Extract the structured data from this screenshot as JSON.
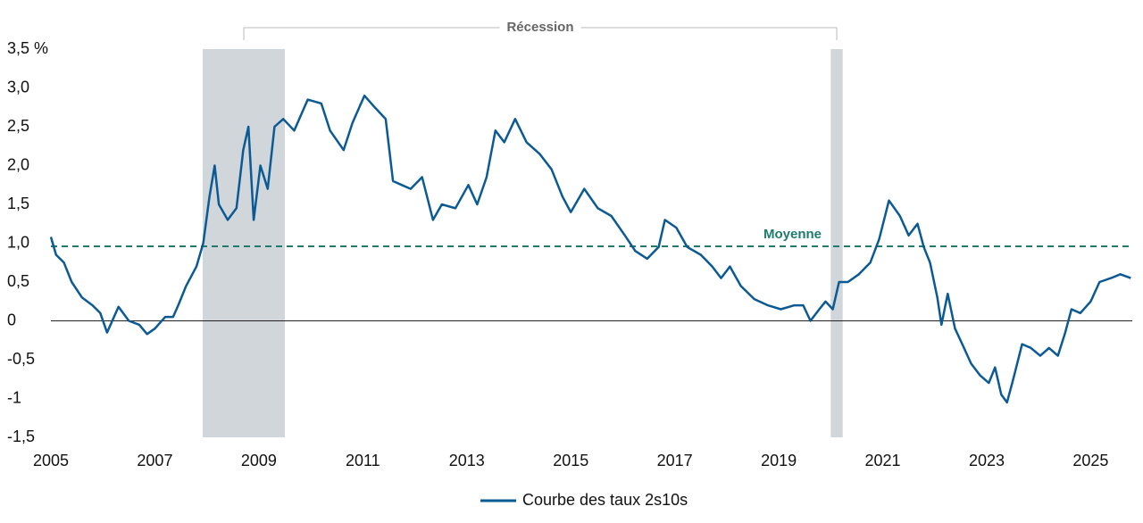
{
  "chart_data": {
    "type": "line",
    "x": [
      2005.0,
      2005.1,
      2005.25,
      2005.4,
      2005.6,
      2005.8,
      2005.95,
      2006.08,
      2006.3,
      2006.5,
      2006.7,
      2006.85,
      2007.0,
      2007.2,
      2007.35,
      2007.45,
      2007.6,
      2007.8,
      2007.93,
      2008.05,
      2008.15,
      2008.23,
      2008.4,
      2008.57,
      2008.7,
      2008.8,
      2008.9,
      2009.03,
      2009.17,
      2009.3,
      2009.47,
      2009.68,
      2009.94,
      2010.2,
      2010.37,
      2010.63,
      2010.8,
      2011.03,
      2011.23,
      2011.44,
      2011.58,
      2011.75,
      2011.92,
      2012.14,
      2012.35,
      2012.52,
      2012.78,
      2013.03,
      2013.2,
      2013.38,
      2013.55,
      2013.72,
      2013.93,
      2014.15,
      2014.4,
      2014.63,
      2014.84,
      2015.0,
      2015.26,
      2015.52,
      2015.78,
      2016.04,
      2016.24,
      2016.47,
      2016.69,
      2016.81,
      2017.03,
      2017.24,
      2017.5,
      2017.72,
      2017.89,
      2018.06,
      2018.27,
      2018.53,
      2018.79,
      2019.04,
      2019.3,
      2019.47,
      2019.61,
      2019.78,
      2019.9,
      2020.04,
      2020.16,
      2020.33,
      2020.54,
      2020.76,
      2020.93,
      2021.12,
      2021.33,
      2021.5,
      2021.67,
      2021.79,
      2021.91,
      2022.05,
      2022.13,
      2022.25,
      2022.39,
      2022.53,
      2022.7,
      2022.87,
      2023.04,
      2023.16,
      2023.28,
      2023.39,
      2023.51,
      2023.68,
      2023.85,
      2024.03,
      2024.2,
      2024.37,
      2024.51,
      2024.63,
      2024.8,
      2025.0,
      2025.17,
      2025.39,
      2025.57,
      2025.77
    ],
    "series": [
      {
        "name": "Courbe des taux 2s10s",
        "color": "#0b5a94",
        "values": [
          1.08,
          0.85,
          0.75,
          0.5,
          0.3,
          0.2,
          0.1,
          -0.15,
          0.18,
          0.0,
          -0.05,
          -0.17,
          -0.1,
          0.05,
          0.05,
          0.2,
          0.45,
          0.7,
          1.0,
          1.6,
          2.0,
          1.5,
          1.3,
          1.45,
          2.2,
          2.5,
          1.3,
          2.0,
          1.7,
          2.5,
          2.6,
          2.45,
          2.85,
          2.8,
          2.45,
          2.2,
          2.55,
          2.9,
          2.75,
          2.6,
          1.8,
          1.75,
          1.7,
          1.85,
          1.3,
          1.5,
          1.45,
          1.75,
          1.5,
          1.85,
          2.45,
          2.3,
          2.6,
          2.3,
          2.15,
          1.95,
          1.6,
          1.4,
          1.7,
          1.45,
          1.35,
          1.1,
          0.9,
          0.8,
          0.95,
          1.3,
          1.2,
          0.95,
          0.85,
          0.7,
          0.55,
          0.7,
          0.45,
          0.28,
          0.2,
          0.15,
          0.2,
          0.2,
          0.0,
          0.15,
          0.25,
          0.15,
          0.5,
          0.5,
          0.6,
          0.75,
          1.05,
          1.55,
          1.35,
          1.1,
          1.25,
          0.95,
          0.75,
          0.3,
          -0.05,
          0.35,
          -0.1,
          -0.3,
          -0.55,
          -0.7,
          -0.8,
          -0.6,
          -0.95,
          -1.05,
          -0.75,
          -0.3,
          -0.35,
          -0.45,
          -0.35,
          -0.45,
          -0.15,
          0.15,
          0.1,
          0.25,
          0.5,
          0.55,
          0.6,
          0.55
        ]
      }
    ],
    "xlim": [
      2005,
      2025.8
    ],
    "xticks": [
      2005,
      2007,
      2009,
      2011,
      2013,
      2015,
      2017,
      2019,
      2021,
      2023,
      2025
    ],
    "ylim": [
      -1.5,
      3.5
    ],
    "yticks": [
      {
        "value": 3.5,
        "label": "3,5 %"
      },
      {
        "value": 3.0,
        "label": "3,0"
      },
      {
        "value": 2.5,
        "label": "2,5"
      },
      {
        "value": 2.0,
        "label": "2,0"
      },
      {
        "value": 1.5,
        "label": "1,5"
      },
      {
        "value": 1.0,
        "label": "1,0"
      },
      {
        "value": 0.5,
        "label": "0,5"
      },
      0,
      {
        "value": -0.5,
        "label": "-0,5"
      },
      {
        "value": -1,
        "label": "-1"
      },
      {
        "value": -1.5,
        "label": "-1,5"
      }
    ],
    "recessions": {
      "label": "Récession",
      "color": "#d1d6da",
      "periods": [
        {
          "start": 2007.92,
          "end": 2009.5
        },
        {
          "start": 2020.0,
          "end": 2020.23
        }
      ]
    },
    "mean": {
      "label": "Moyenne",
      "value": 0.96,
      "color": "#1e7b6e"
    }
  }
}
